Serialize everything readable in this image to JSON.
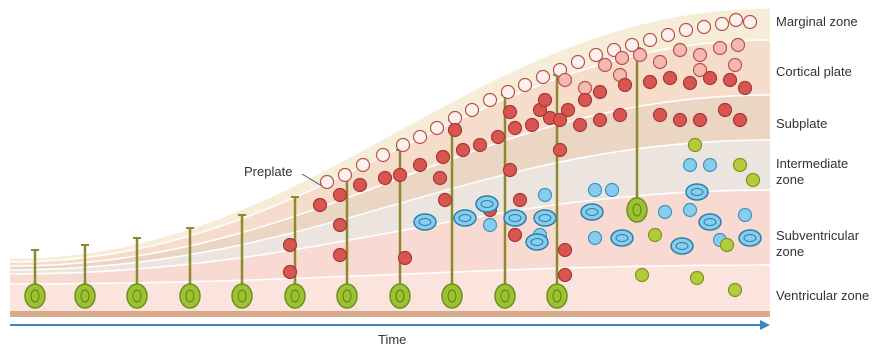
{
  "zones": [
    "Marginal zone",
    "Cortical plate",
    "Subplate",
    "Intermediate zone",
    "Subventricular zone",
    "Ventricular zone"
  ],
  "annotation": "Preplate",
  "axis_label": "Time"
}
